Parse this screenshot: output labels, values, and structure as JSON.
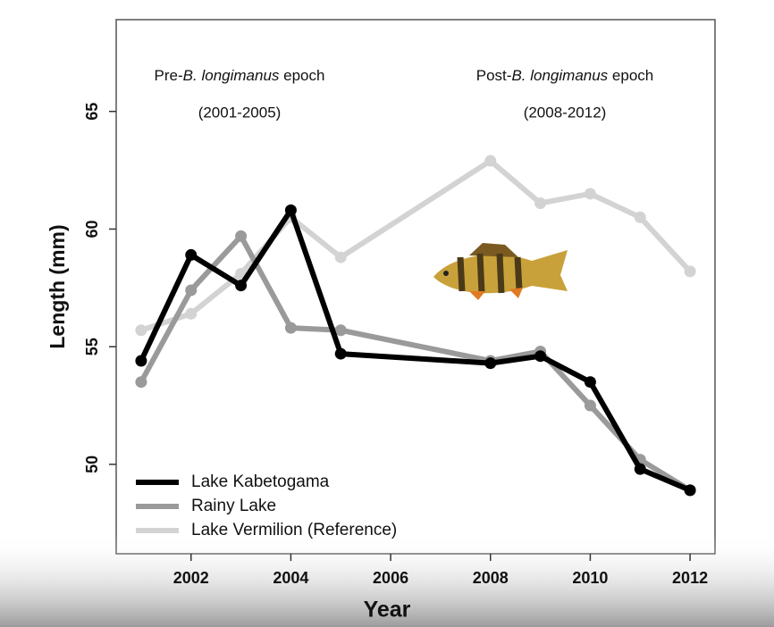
{
  "chart_data": {
    "type": "line",
    "xlabel": "Year",
    "ylabel": "Length (mm)",
    "annotations": [
      {
        "parts": [
          {
            "text": "Pre-"
          },
          {
            "text": "B. longimanus",
            "italic": true
          },
          {
            "text": " epoch"
          }
        ],
        "subtext": "(2001-2005)"
      },
      {
        "parts": [
          {
            "text": "Post-"
          },
          {
            "text": "B. longimanus",
            "italic": true
          },
          {
            "text": " epoch"
          }
        ],
        "subtext": "(2008-2012)"
      }
    ],
    "x": [
      2001,
      2002,
      2003,
      2004,
      2005,
      2008,
      2009,
      2010,
      2011,
      2012
    ],
    "series": [
      {
        "name": "Lake Kabetogama",
        "color": "#000000",
        "values": [
          54.4,
          58.9,
          57.6,
          60.8,
          54.7,
          54.3,
          54.6,
          53.5,
          49.8,
          48.9
        ]
      },
      {
        "name": "Rainy Lake",
        "color": "#9a9a9a",
        "values": [
          53.5,
          57.4,
          59.7,
          55.8,
          55.7,
          54.4,
          54.8,
          52.5,
          50.2,
          48.9
        ]
      },
      {
        "name": "Lake Vermilion (Reference)",
        "color": "#d3d3d3",
        "values": [
          55.7,
          56.4,
          58.1,
          60.5,
          58.8,
          62.9,
          61.1,
          61.5,
          60.5,
          58.2
        ]
      }
    ],
    "xlim": [
      2000.5,
      2012.5
    ],
    "xticks": [
      2002,
      2004,
      2006,
      2008,
      2010,
      2012
    ],
    "ylim": [
      46.2,
      68.9
    ],
    "yticks": [
      50,
      55,
      60,
      65
    ],
    "legend": "lower left",
    "grid": false
  }
}
